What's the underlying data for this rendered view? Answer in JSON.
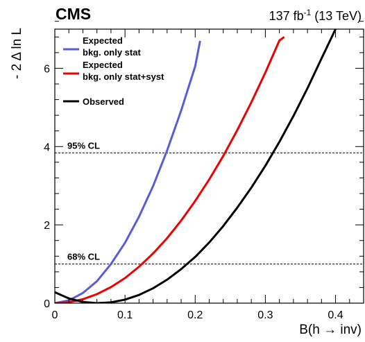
{
  "header": {
    "experiment": "CMS",
    "lumi_value": "137 fb",
    "lumi_exp": "-1",
    "lumi_energy": " (13 TeV)"
  },
  "chart_data": {
    "type": "line",
    "title": "",
    "xlabel": "B(h → inv)",
    "ylabel": "- 2 Δ ln L",
    "xlim": [
      0,
      0.44
    ],
    "ylim": [
      0,
      7.0
    ],
    "xticks": [
      0,
      0.1,
      0.2,
      0.3,
      0.4
    ],
    "xtick_labels": [
      "0",
      "0.1",
      "0.2",
      "0.3",
      "0.4"
    ],
    "yticks": [
      0,
      2,
      4,
      6
    ],
    "ytick_labels": [
      "0",
      "2",
      "4",
      "6"
    ],
    "grid": false,
    "legend_position": "top-left",
    "reference_lines": [
      {
        "label": "95% CL",
        "y": 3.84
      },
      {
        "label": "68% CL",
        "y": 1.0
      }
    ],
    "series": [
      {
        "name": "Expected bkg. only stat",
        "legend_lines": [
          "Expected",
          "bkg. only stat"
        ],
        "color": "#5a5adc",
        "x": [
          0.0,
          0.02,
          0.04,
          0.06,
          0.08,
          0.1,
          0.12,
          0.14,
          0.16,
          0.18,
          0.2,
          0.207
        ],
        "y": [
          0.0,
          0.07,
          0.26,
          0.56,
          1.0,
          1.54,
          2.21,
          2.99,
          3.9,
          4.92,
          6.05,
          6.7
        ]
      },
      {
        "name": "Expected bkg. only stat+syst",
        "legend_lines": [
          "Expected",
          "bkg. only stat+syst"
        ],
        "color": "#ee0000",
        "x": [
          0.0,
          0.02,
          0.04,
          0.06,
          0.08,
          0.1,
          0.12,
          0.14,
          0.16,
          0.18,
          0.2,
          0.22,
          0.24,
          0.26,
          0.28,
          0.3,
          0.32,
          0.327
        ],
        "y": [
          0.0,
          0.025,
          0.1,
          0.23,
          0.41,
          0.64,
          0.93,
          1.27,
          1.66,
          2.11,
          2.61,
          3.16,
          3.76,
          4.42,
          5.13,
          5.89,
          6.71,
          6.8
        ]
      },
      {
        "name": "Observed",
        "legend_lines": [
          "Observed"
        ],
        "color": "#000000",
        "x": [
          0.0,
          0.02,
          0.04,
          0.06,
          0.08,
          0.1,
          0.12,
          0.14,
          0.16,
          0.18,
          0.2,
          0.22,
          0.24,
          0.26,
          0.28,
          0.3,
          0.32,
          0.34,
          0.36,
          0.38,
          0.4
        ],
        "y": [
          0.28,
          0.12,
          0.03,
          0.0,
          0.02,
          0.09,
          0.21,
          0.38,
          0.6,
          0.87,
          1.18,
          1.55,
          1.97,
          2.44,
          2.95,
          3.51,
          4.12,
          4.78,
          5.49,
          6.25,
          7.0
        ]
      }
    ]
  }
}
